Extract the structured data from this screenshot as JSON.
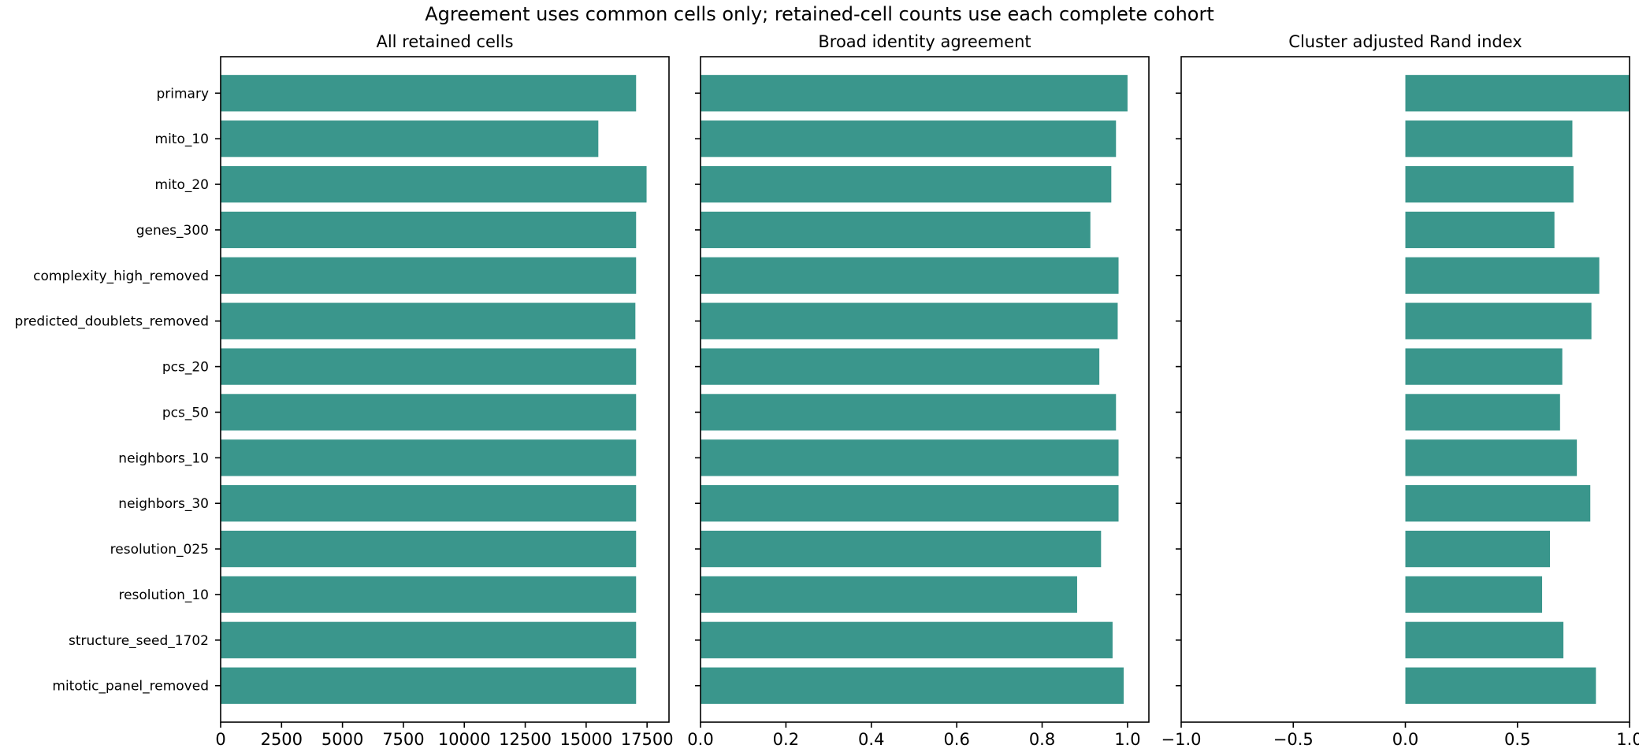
{
  "chart_data": {
    "suptitle": "Agreement uses common cells only; retained-cell counts use each complete cohort",
    "type": "bar",
    "orientation": "horizontal",
    "bar_color": "#3a968c",
    "categories": [
      "primary",
      "mito_10",
      "mito_20",
      "genes_300",
      "complexity_high_removed",
      "predicted_doublets_removed",
      "pcs_20",
      "pcs_50",
      "neighbors_10",
      "neighbors_30",
      "resolution_025",
      "resolution_10",
      "structure_seed_1702",
      "mitotic_panel_removed"
    ],
    "panels": [
      {
        "title": "All retained cells",
        "xlim": [
          0,
          18400
        ],
        "ticks": [
          0,
          2500,
          5000,
          7500,
          10000,
          12500,
          15000,
          17500
        ],
        "tick_labels": [
          "0",
          "2500",
          "5000",
          "7500",
          "10000",
          "12500",
          "15000",
          "17500"
        ],
        "show_category_labels": true,
        "values": [
          17050,
          15500,
          17480,
          17050,
          17050,
          17020,
          17050,
          17050,
          17050,
          17050,
          17050,
          17050,
          17050,
          17050
        ]
      },
      {
        "title": "Broad identity agreement",
        "xlim": [
          0,
          1.05
        ],
        "ticks": [
          0,
          0.2,
          0.4,
          0.6,
          0.8,
          1.0
        ],
        "tick_labels": [
          "0.0",
          "0.2",
          "0.4",
          "0.6",
          "0.8",
          "1.0"
        ],
        "show_category_labels": false,
        "values": [
          1.0,
          0.973,
          0.962,
          0.913,
          0.979,
          0.977,
          0.934,
          0.973,
          0.979,
          0.979,
          0.938,
          0.882,
          0.965,
          0.991
        ]
      },
      {
        "title": "Cluster adjusted Rand index",
        "xlim": [
          -1.0,
          1.0
        ],
        "ticks": [
          -1.0,
          -0.5,
          0.0,
          0.5,
          1.0
        ],
        "tick_labels": [
          "−1.0",
          "−0.5",
          "0.0",
          "0.5",
          "1.0"
        ],
        "show_category_labels": false,
        "values": [
          1.0,
          0.745,
          0.75,
          0.665,
          0.865,
          0.83,
          0.7,
          0.69,
          0.765,
          0.825,
          0.645,
          0.61,
          0.705,
          0.85
        ]
      }
    ]
  }
}
